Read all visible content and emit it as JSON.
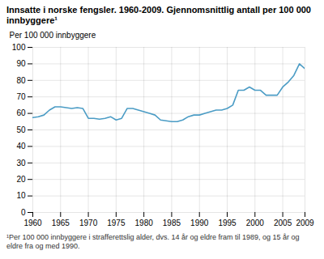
{
  "chart_data": {
    "type": "line",
    "title": "Innsatte i norske fengsler. 1960-2009. Gjennomsnittlig antall per 100 000 innbyggere¹",
    "ylabel": "Per 100 000 innbyggere",
    "annotations": [
      "¹Per 100 000 innbyggere i strafferettslig alder, dvs. 14 år og eldre fram til 1989, og 15 år og eldre fra og med 1990."
    ],
    "x": [
      1960,
      1961,
      1962,
      1963,
      1964,
      1965,
      1966,
      1967,
      1968,
      1969,
      1970,
      1971,
      1972,
      1973,
      1974,
      1975,
      1976,
      1977,
      1978,
      1979,
      1980,
      1981,
      1982,
      1983,
      1984,
      1985,
      1986,
      1987,
      1988,
      1989,
      1990,
      1991,
      1992,
      1993,
      1994,
      1995,
      1996,
      1997,
      1998,
      1999,
      2000,
      2001,
      2002,
      2003,
      2004,
      2005,
      2006,
      2007,
      2008,
      2009
    ],
    "values": [
      57.5,
      58,
      59,
      62,
      64,
      64,
      63.5,
      63,
      63.5,
      63,
      57,
      57,
      56.5,
      57,
      58,
      56,
      57,
      63,
      63,
      62,
      61,
      60,
      59,
      56,
      55.5,
      55,
      55,
      56,
      58,
      59,
      59,
      60,
      61,
      62,
      62,
      63,
      65,
      74,
      74,
      76,
      74,
      74,
      71,
      71,
      71,
      76,
      79,
      83,
      90,
      87
    ],
    "color": "#4b9cc5",
    "xlim": [
      1960,
      2009
    ],
    "xticks": [
      1960,
      1965,
      1970,
      1975,
      1980,
      1985,
      1990,
      1995,
      2000,
      2005,
      2009
    ],
    "ylim": [
      0,
      100
    ],
    "yticks": [
      0,
      10,
      20,
      30,
      40,
      50,
      60,
      70,
      80,
      90,
      100
    ],
    "grid": true
  }
}
